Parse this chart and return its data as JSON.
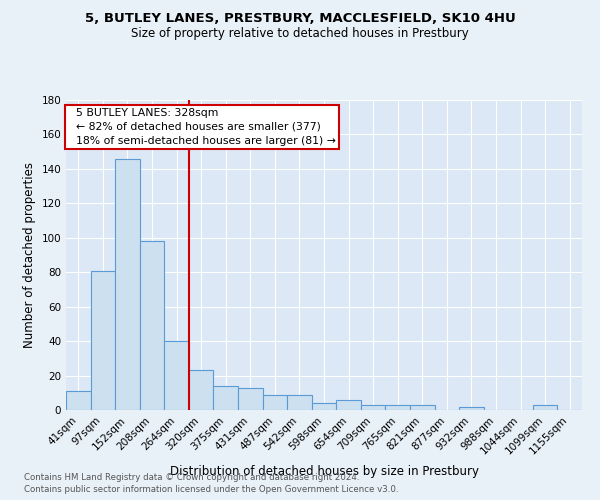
{
  "title1": "5, BUTLEY LANES, PRESTBURY, MACCLESFIELD, SK10 4HU",
  "title2": "Size of property relative to detached houses in Prestbury",
  "xlabel": "Distribution of detached houses by size in Prestbury",
  "ylabel": "Number of detached properties",
  "footnote1": "Contains HM Land Registry data © Crown copyright and database right 2024.",
  "footnote2": "Contains public sector information licensed under the Open Government Licence v3.0.",
  "bar_labels": [
    "41sqm",
    "97sqm",
    "152sqm",
    "208sqm",
    "264sqm",
    "320sqm",
    "375sqm",
    "431sqm",
    "487sqm",
    "542sqm",
    "598sqm",
    "654sqm",
    "709sqm",
    "765sqm",
    "821sqm",
    "877sqm",
    "932sqm",
    "988sqm",
    "1044sqm",
    "1099sqm",
    "1155sqm"
  ],
  "bar_values": [
    11,
    81,
    146,
    98,
    40,
    23,
    14,
    13,
    9,
    9,
    4,
    6,
    3,
    3,
    3,
    0,
    2,
    0,
    0,
    3,
    0
  ],
  "bar_color": "#cce0f0",
  "bar_edge_color": "#5b9bd5",
  "vline_color": "#cc0000",
  "annotation_text": "  5 BUTLEY LANES: 328sqm\n  ← 82% of detached houses are smaller (377)\n  18% of semi-detached houses are larger (81) →",
  "annotation_box_color": "white",
  "annotation_box_edge": "#cc0000",
  "ylim": [
    0,
    180
  ],
  "yticks": [
    0,
    20,
    40,
    60,
    80,
    100,
    120,
    140,
    160,
    180
  ],
  "bg_color": "#e8f0f8",
  "plot_bg_color": "#dce8f5"
}
